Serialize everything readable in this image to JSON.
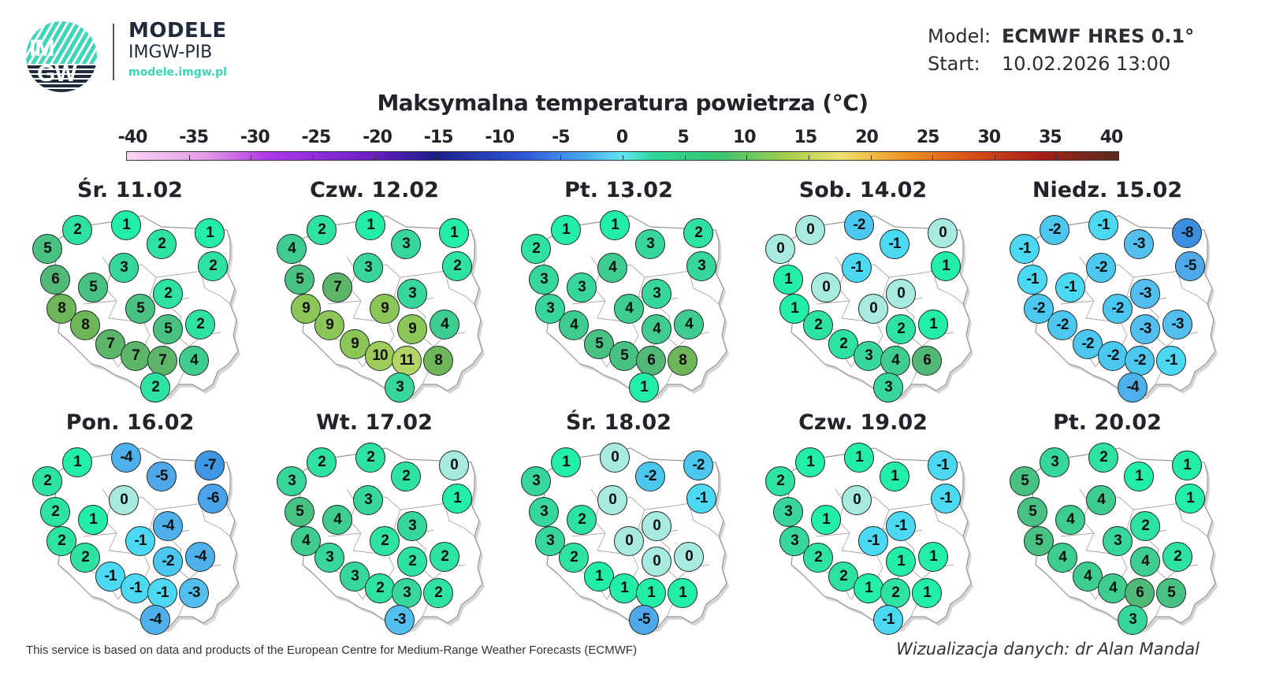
{
  "header": {
    "logo_text_top": "IM",
    "logo_text_bottom": "GW",
    "brand_title": "MODELE",
    "brand_subtitle": "IMGW-PIB",
    "brand_url": "modele.imgw.pl",
    "model_label": "Model:",
    "model_value": "ECMWF HRES 0.1°",
    "start_label": "Start:",
    "start_value": "10.02.2026 13:00"
  },
  "title": "Maksymalna temperatura powietrza (°C)",
  "colorbar": {
    "ticks": [
      "-40",
      "-35",
      "-30",
      "-25",
      "-20",
      "-15",
      "-10",
      "-5",
      "0",
      "5",
      "10",
      "15",
      "20",
      "25",
      "30",
      "35",
      "40"
    ],
    "min": -40,
    "max": 40
  },
  "footer": {
    "credit": "This service is based on data and products of the European Centre for Medium-Range Weather Forecasts (ECMWF)",
    "author": "Wizualizacja danych: dr Alan Mandal"
  },
  "chart_data": {
    "type": "table",
    "title": "Maksymalna temperatura powietrza (°C)",
    "model": "ECMWF HRES 0.1°",
    "start": "10.02.2026 13:00",
    "unit": "°C",
    "colorbar_range": [
      -40,
      40
    ],
    "station_order": [
      "NW-coast",
      "N-coast-west",
      "N-coast-center",
      "N-east-inland",
      "NE-corner",
      "N-central",
      "NE-east",
      "W-north",
      "W-central",
      "E-central",
      "W-south",
      "central",
      "SW-1",
      "central-south",
      "E-south",
      "SW-2",
      "S-1",
      "S-2",
      "SE",
      "S-tip"
    ],
    "days": [
      {
        "label": "Śr. 11.02",
        "values": [
          5,
          2,
          1,
          2,
          1,
          3,
          2,
          6,
          5,
          2,
          8,
          5,
          8,
          5,
          2,
          7,
          7,
          7,
          4,
          2
        ]
      },
      {
        "label": "Czw. 12.02",
        "values": [
          4,
          2,
          1,
          3,
          1,
          3,
          2,
          5,
          7,
          3,
          9,
          9,
          9,
          9,
          4,
          9,
          10,
          11,
          8,
          3
        ]
      },
      {
        "label": "Pt. 13.02",
        "values": [
          2,
          1,
          1,
          3,
          2,
          4,
          3,
          3,
          3,
          3,
          3,
          4,
          4,
          4,
          4,
          5,
          5,
          6,
          8,
          1
        ]
      },
      {
        "label": "Sob. 14.02",
        "values": [
          0,
          0,
          -2,
          -1,
          0,
          -1,
          1,
          1,
          0,
          0,
          1,
          0,
          2,
          2,
          1,
          2,
          3,
          4,
          6,
          3
        ]
      },
      {
        "label": "Niedz. 15.02",
        "values": [
          -1,
          -2,
          -1,
          -3,
          -8,
          -2,
          -5,
          -1,
          -1,
          -3,
          -2,
          -2,
          -2,
          -3,
          -3,
          -2,
          -2,
          -2,
          -1,
          -4
        ]
      },
      {
        "label": "Pon. 16.02",
        "values": [
          2,
          1,
          -4,
          -5,
          -7,
          0,
          -6,
          2,
          1,
          -4,
          2,
          -1,
          2,
          -2,
          -4,
          -1,
          -1,
          -1,
          -3,
          -4
        ]
      },
      {
        "label": "Wt. 17.02",
        "values": [
          3,
          2,
          2,
          2,
          0,
          3,
          1,
          5,
          4,
          3,
          4,
          2,
          3,
          2,
          2,
          3,
          2,
          3,
          2,
          -3
        ]
      },
      {
        "label": "Śr. 18.02",
        "values": [
          3,
          1,
          0,
          -2,
          -2,
          0,
          -1,
          3,
          2,
          0,
          3,
          0,
          2,
          0,
          0,
          1,
          1,
          1,
          1,
          -5
        ]
      },
      {
        "label": "Czw. 19.02",
        "values": [
          2,
          1,
          1,
          1,
          -1,
          0,
          -1,
          3,
          1,
          -1,
          3,
          -1,
          2,
          1,
          1,
          2,
          1,
          2,
          1,
          -1
        ]
      },
      {
        "label": "Pt. 20.02",
        "values": [
          5,
          3,
          2,
          1,
          1,
          4,
          1,
          5,
          4,
          2,
          5,
          3,
          4,
          4,
          2,
          4,
          4,
          6,
          5,
          3
        ]
      }
    ]
  },
  "panels": [
    {
      "day": "Śr. 11.02"
    },
    {
      "day": "Czw. 12.02"
    },
    {
      "day": "Pt. 13.02"
    },
    {
      "day": "Sob. 14.02"
    },
    {
      "day": "Niedz. 15.02"
    },
    {
      "day": "Pon. 16.02"
    },
    {
      "day": "Wt. 17.02"
    },
    {
      "day": "Śr. 18.02"
    },
    {
      "day": "Czw. 19.02"
    },
    {
      "day": "Pt. 20.02"
    }
  ]
}
